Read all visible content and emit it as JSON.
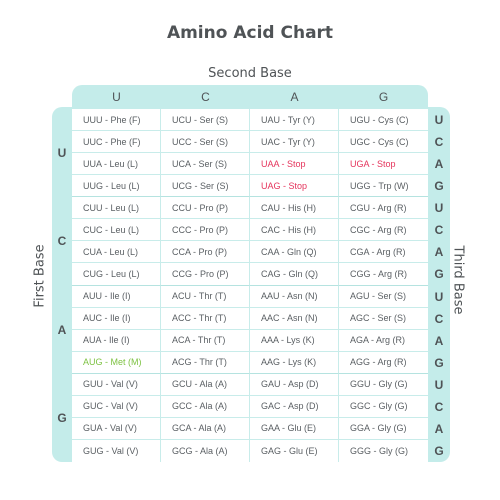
{
  "title": "Amino Acid Chart",
  "second_base_label": "Second Base",
  "first_base_label": "First Base",
  "third_base_label": "Third Base",
  "second_bases": [
    "U",
    "C",
    "A",
    "G"
  ],
  "first_bases": [
    "U",
    "C",
    "A",
    "G"
  ],
  "third_bases": [
    "U",
    "C",
    "A",
    "G",
    "U",
    "C",
    "A",
    "G",
    "U",
    "C",
    "A",
    "G",
    "U",
    "C",
    "A",
    "G"
  ],
  "colors": {
    "frame": "#c4ecea",
    "stop": "#e5345c",
    "start": "#7dc242",
    "text": "#5a5f63"
  },
  "rows": [
    [
      {
        "t": "UUU - Phe (F)"
      },
      {
        "t": "UCU - Ser (S)"
      },
      {
        "t": "UAU - Tyr (Y)"
      },
      {
        "t": "UGU - Cys (C)"
      }
    ],
    [
      {
        "t": "UUC - Phe (F)"
      },
      {
        "t": "UCC - Ser (S)"
      },
      {
        "t": "UAC - Tyr (Y)"
      },
      {
        "t": "UGC - Cys (C)"
      }
    ],
    [
      {
        "t": "UUA - Leu (L)"
      },
      {
        "t": "UCA - Ser (S)"
      },
      {
        "t": "UAA - Stop",
        "k": "stop"
      },
      {
        "t": "UGA - Stop",
        "k": "stop"
      }
    ],
    [
      {
        "t": "UUG - Leu (L)"
      },
      {
        "t": "UCG - Ser (S)"
      },
      {
        "t": "UAG - Stop",
        "k": "stop"
      },
      {
        "t": "UGG - Trp (W)"
      }
    ],
    [
      {
        "t": "CUU - Leu (L)"
      },
      {
        "t": "CCU - Pro (P)"
      },
      {
        "t": "CAU - His (H)"
      },
      {
        "t": "CGU - Arg (R)"
      }
    ],
    [
      {
        "t": "CUC - Leu (L)"
      },
      {
        "t": "CCC - Pro (P)"
      },
      {
        "t": "CAC - His (H)"
      },
      {
        "t": "CGC - Arg (R)"
      }
    ],
    [
      {
        "t": "CUA - Leu (L)"
      },
      {
        "t": "CCA - Pro (P)"
      },
      {
        "t": "CAA - Gln (Q)"
      },
      {
        "t": "CGA - Arg (R)"
      }
    ],
    [
      {
        "t": "CUG - Leu (L)"
      },
      {
        "t": "CCG - Pro (P)"
      },
      {
        "t": "CAG - Gln (Q)"
      },
      {
        "t": "CGG - Arg (R)"
      }
    ],
    [
      {
        "t": "AUU - Ile (I)"
      },
      {
        "t": "ACU - Thr (T)"
      },
      {
        "t": "AAU - Asn (N)"
      },
      {
        "t": "AGU - Ser (S)"
      }
    ],
    [
      {
        "t": "AUC - Ile (I)"
      },
      {
        "t": "ACC - Thr (T)"
      },
      {
        "t": "AAC - Asn (N)"
      },
      {
        "t": "AGC - Ser (S)"
      }
    ],
    [
      {
        "t": "AUA - Ile (I)"
      },
      {
        "t": "ACA - Thr (T)"
      },
      {
        "t": "AAA - Lys (K)"
      },
      {
        "t": "AGA - Arg (R)"
      }
    ],
    [
      {
        "t": "AUG - Met (M)",
        "k": "start"
      },
      {
        "t": "ACG - Thr (T)"
      },
      {
        "t": "AAG - Lys (K)"
      },
      {
        "t": "AGG - Arg (R)"
      }
    ],
    [
      {
        "t": "GUU - Val (V)"
      },
      {
        "t": "GCU - Ala (A)"
      },
      {
        "t": "GAU - Asp (D)"
      },
      {
        "t": "GGU - Gly (G)"
      }
    ],
    [
      {
        "t": "GUC - Val (V)"
      },
      {
        "t": "GCC - Ala (A)"
      },
      {
        "t": "GAC - Asp (D)"
      },
      {
        "t": "GGC - Gly (G)"
      }
    ],
    [
      {
        "t": "GUA - Val (V)"
      },
      {
        "t": "GCA - Ala (A)"
      },
      {
        "t": "GAA - Glu (E)"
      },
      {
        "t": "GGA - Gly (G)"
      }
    ],
    [
      {
        "t": "GUG - Val (V)"
      },
      {
        "t": "GCG - Ala (A)"
      },
      {
        "t": "GAG - Glu (E)"
      },
      {
        "t": "GGG - Gly (G)"
      }
    ]
  ]
}
